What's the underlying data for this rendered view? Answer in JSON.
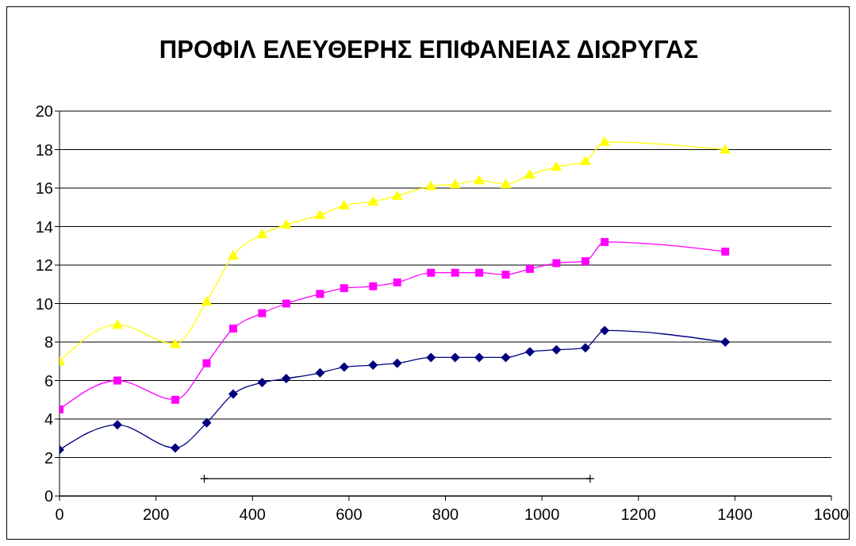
{
  "chart_data": {
    "type": "line",
    "title": "ΠΡΟΦΙΛ ΕΛΕΥΘΕΡΗΣ ΕΠΙΦΑΝΕΙΑΣ ΔΙΩΡΥΓΑΣ",
    "x": [
      0,
      120,
      240,
      305,
      360,
      420,
      470,
      540,
      590,
      650,
      700,
      770,
      820,
      870,
      925,
      975,
      1030,
      1090,
      1130,
      1380
    ],
    "series": [
      {
        "color": "#000080",
        "marker": "diamond",
        "values": [
          2.4,
          3.7,
          2.5,
          3.8,
          5.3,
          5.9,
          6.1,
          6.4,
          6.7,
          6.8,
          6.9,
          7.2,
          7.2,
          7.2,
          7.2,
          7.5,
          7.6,
          7.7,
          8.6,
          8.0
        ]
      },
      {
        "color": "#ff00ff",
        "marker": "square",
        "values": [
          4.5,
          6.0,
          5.0,
          6.9,
          8.7,
          9.5,
          10.0,
          10.5,
          10.8,
          10.9,
          11.1,
          11.6,
          11.6,
          11.6,
          11.5,
          11.8,
          12.1,
          12.2,
          13.2,
          12.7
        ]
      },
      {
        "color": "#ffff00",
        "marker": "triangle",
        "values": [
          7.0,
          8.9,
          7.9,
          10.1,
          12.5,
          13.6,
          14.1,
          14.6,
          15.1,
          15.3,
          15.6,
          16.1,
          16.2,
          16.4,
          16.2,
          16.7,
          17.1,
          17.4,
          18.4,
          18.0
        ]
      },
      {
        "color": "#000000",
        "marker": "cross",
        "x": [
          300,
          1100
        ],
        "values": [
          0.9,
          0.9
        ]
      }
    ],
    "xlim": [
      0,
      1600
    ],
    "xticks": [
      0,
      200,
      400,
      600,
      800,
      1000,
      1200,
      1400,
      1600
    ],
    "ylim": [
      0,
      20
    ],
    "yticks": [
      0,
      2,
      4,
      6,
      8,
      10,
      12,
      14,
      16,
      18,
      20
    ],
    "grid": "y",
    "line_style": "solid"
  }
}
